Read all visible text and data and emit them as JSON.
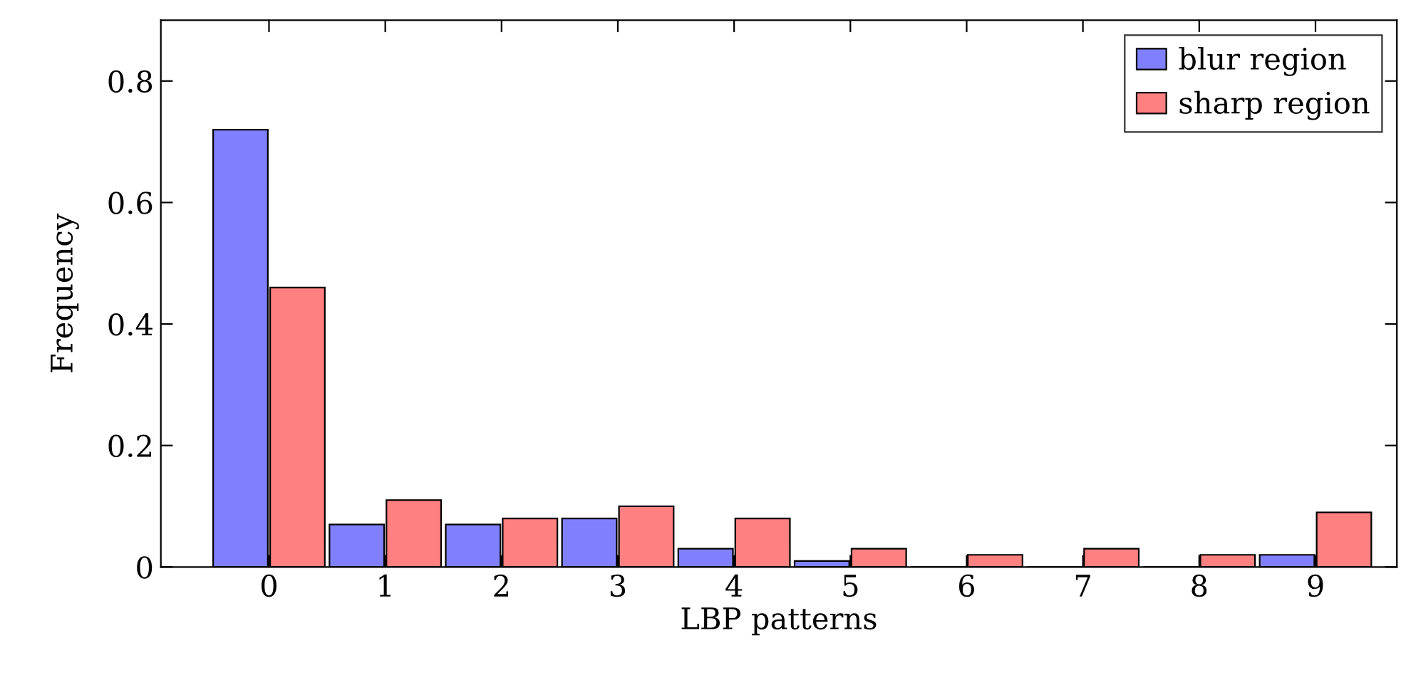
{
  "chart_data": {
    "type": "bar",
    "xlabel": "LBP patterns",
    "ylabel": "Frequency",
    "x": [
      0,
      1,
      2,
      3,
      4,
      5,
      6,
      7,
      8,
      9
    ],
    "series": [
      {
        "name": "blur region",
        "color": "#8080ff",
        "values": [
          0.72,
          0.07,
          0.07,
          0.08,
          0.03,
          0.01,
          0,
          0,
          0,
          0.02
        ]
      },
      {
        "name": "sharp region",
        "color": "#ff8080",
        "values": [
          0.46,
          0.11,
          0.08,
          0.1,
          0.08,
          0.03,
          0.02,
          0.03,
          0.02,
          0.09
        ]
      }
    ],
    "xlim": [
      -0.93,
      9.7
    ],
    "xticks": [
      0,
      1,
      2,
      3,
      4,
      5,
      6,
      7,
      8,
      9
    ],
    "ylim": [
      0,
      0.9
    ],
    "yticks": [
      0,
      0.2,
      0.4,
      0.6,
      0.8
    ],
    "grid": false,
    "legend": "top right"
  }
}
